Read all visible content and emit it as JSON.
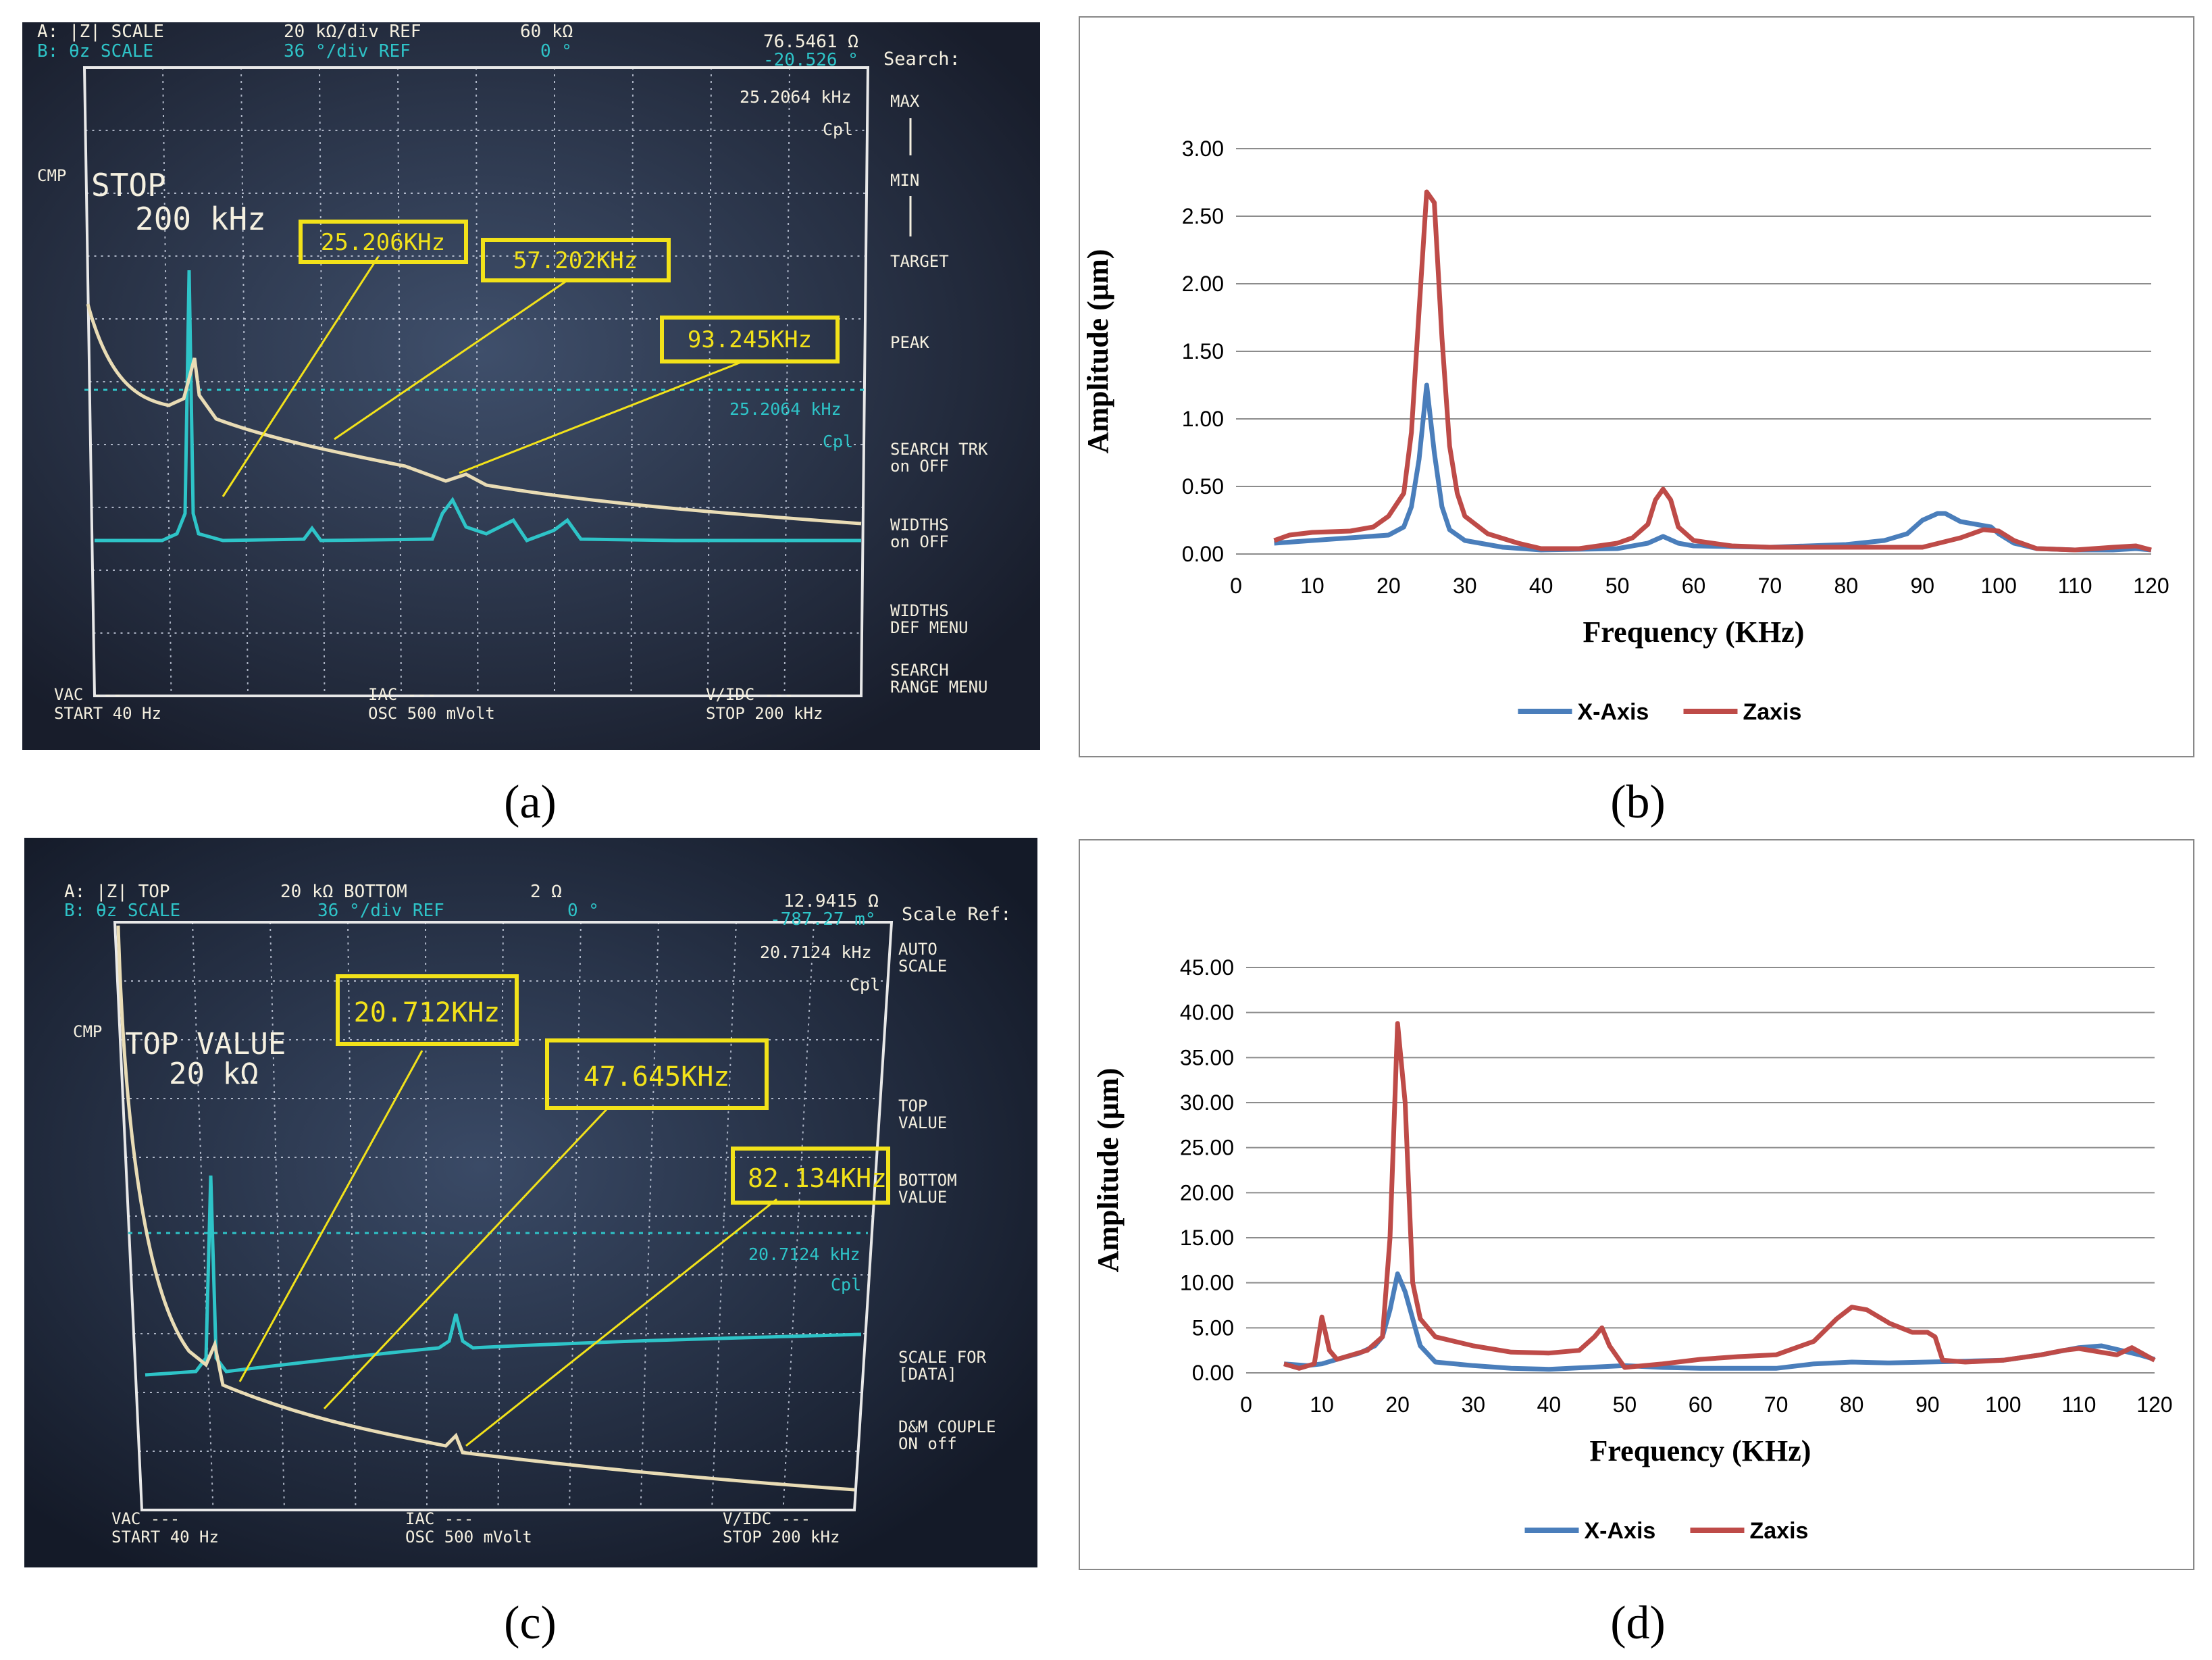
{
  "panels": {
    "a": {
      "caption": "(a)",
      "hdr": {
        "l1": "A: |Z|  SCALE",
        "l1b": "20 kΩ/div REF",
        "l1c": "60 kΩ",
        "l2": "B: θz  SCALE",
        "l2b": "36 °/div REF",
        "l2c": "0 °",
        "val1": "76.5461 Ω",
        "val2": "-20.526 °"
      },
      "cmp": "CMP",
      "big1": "STOP",
      "big2": "200 kHz",
      "marker_freq_top": "25.2064 kHz",
      "marker_cpl_top": "Cpl",
      "marker_freq_mid": "25.2064 kHz",
      "marker_cpl_mid": "Cpl",
      "softkey_title": "Search:",
      "softkeys": [
        "MAX",
        "MIN",
        "TARGET",
        "PEAK",
        "SEARCH TRK",
        "on OFF",
        "WIDTHS",
        "on OFF",
        "WIDTHS",
        "DEF MENU",
        "SEARCH",
        "RANGE MENU"
      ],
      "footer": {
        "l1": "VAC ---",
        "l2": "START 40 Hz",
        "m1": "IAC ---",
        "m2": "OSC 500 mVolt",
        "r1": "V/IDC ---",
        "r2": "STOP 200 kHz"
      },
      "callouts": [
        "25.206KHz",
        "57.202KHz",
        "93.245KHz"
      ]
    },
    "c": {
      "caption": "(c)",
      "hdr": {
        "l1": "A: |Z|  TOP",
        "l1b": "20 kΩ BOTTOM",
        "l1c": "2 Ω",
        "l2": "B: θz  SCALE",
        "l2b": "36 °/div REF",
        "l2c": "0 °",
        "val1": "12.9415 Ω",
        "val2": "-787.27 m°"
      },
      "cmp": "CMP",
      "big1": "TOP VALUE",
      "big2": "20 kΩ",
      "marker_freq_top": "20.7124 kHz",
      "marker_cpl_top": "Cpl",
      "marker_freq_mid": "20.7124 kHz",
      "marker_cpl_mid": "Cpl",
      "softkey_title": "Scale Ref:",
      "softkeys": [
        "AUTO",
        "SCALE",
        "TOP",
        "VALUE",
        "BOTTOM",
        "VALUE",
        "SCALE FOR",
        "[DATA]",
        "D&M COUPLE",
        "ON off"
      ],
      "footer": {
        "l1": "VAC ---",
        "l2": "START 40 Hz",
        "m1": "IAC ---",
        "m2": "OSC 500 mVolt",
        "r1": "V/IDC ---",
        "r2": "STOP 200 kHz"
      },
      "callouts": [
        "20.712KHz",
        "47.645KHz",
        "82.134KHz"
      ]
    },
    "b": {
      "caption": "(b)"
    },
    "d": {
      "caption": "(d)"
    }
  },
  "colors": {
    "x_axis": "#4a7ebb",
    "zaxis": "#be4b48",
    "scope_cyan": "#2ec4c8",
    "scope_trace": "#e9dcb5",
    "callout": "#f2e21a"
  },
  "chart_data": [
    {
      "id": "b",
      "type": "line",
      "title": "",
      "xlabel": "Frequency (KHz)",
      "ylabel": "Amplitude (µm)",
      "xlim": [
        0,
        120
      ],
      "ylim": [
        0,
        3
      ],
      "xticks": [
        0,
        10,
        20,
        30,
        40,
        50,
        60,
        70,
        80,
        90,
        100,
        110,
        120
      ],
      "yticks": [
        0,
        0.5,
        1,
        1.5,
        2,
        2.5,
        3
      ],
      "ytick_labels": [
        "0.00",
        "0.50",
        "1.00",
        "1.50",
        "2.00",
        "2.50",
        "3.00"
      ],
      "legend": "bottom",
      "series": [
        {
          "name": "X-Axis",
          "color": "#4a7ebb",
          "x": [
            5,
            10,
            15,
            20,
            22,
            23,
            24,
            25,
            26,
            27,
            28,
            30,
            35,
            40,
            50,
            54,
            56,
            58,
            60,
            70,
            80,
            85,
            88,
            90,
            92,
            93,
            95,
            97,
            99,
            100,
            102,
            105,
            110,
            115,
            118,
            120
          ],
          "y": [
            0.08,
            0.1,
            0.12,
            0.14,
            0.2,
            0.35,
            0.7,
            1.25,
            0.75,
            0.35,
            0.18,
            0.1,
            0.05,
            0.03,
            0.04,
            0.08,
            0.13,
            0.08,
            0.06,
            0.05,
            0.07,
            0.1,
            0.15,
            0.25,
            0.3,
            0.3,
            0.24,
            0.22,
            0.2,
            0.15,
            0.08,
            0.04,
            0.03,
            0.03,
            0.04,
            0.03
          ]
        },
        {
          "name": "Zaxis",
          "color": "#be4b48",
          "x": [
            5,
            7,
            10,
            15,
            18,
            20,
            22,
            23,
            24,
            25,
            26,
            27,
            28,
            29,
            30,
            33,
            37,
            40,
            45,
            50,
            52,
            54,
            55,
            56,
            57,
            58,
            60,
            65,
            70,
            80,
            90,
            95,
            98,
            100,
            102,
            105,
            110,
            115,
            118,
            120
          ],
          "y": [
            0.1,
            0.14,
            0.16,
            0.17,
            0.2,
            0.28,
            0.45,
            0.9,
            1.8,
            2.68,
            2.6,
            1.6,
            0.8,
            0.45,
            0.28,
            0.15,
            0.08,
            0.04,
            0.04,
            0.08,
            0.12,
            0.22,
            0.4,
            0.48,
            0.4,
            0.2,
            0.1,
            0.06,
            0.05,
            0.05,
            0.05,
            0.12,
            0.18,
            0.17,
            0.1,
            0.04,
            0.03,
            0.05,
            0.06,
            0.03
          ]
        }
      ]
    },
    {
      "id": "d",
      "type": "line",
      "title": "",
      "xlabel": "Frequency (KHz)",
      "ylabel": "Amplitude (µm)",
      "xlim": [
        0,
        120
      ],
      "ylim": [
        0,
        45
      ],
      "xticks": [
        0,
        10,
        20,
        30,
        40,
        50,
        60,
        70,
        80,
        90,
        100,
        110,
        120
      ],
      "yticks": [
        0,
        5,
        10,
        15,
        20,
        25,
        30,
        35,
        40,
        45
      ],
      "ytick_labels": [
        "0.00",
        "5.00",
        "10.00",
        "15.00",
        "20.00",
        "25.00",
        "30.00",
        "35.00",
        "40.00",
        "45.00"
      ],
      "legend": "bottom",
      "series": [
        {
          "name": "X-Axis",
          "color": "#4a7ebb",
          "x": [
            5,
            8,
            10,
            12,
            15,
            17,
            18,
            19,
            20,
            21,
            22,
            23,
            25,
            30,
            35,
            40,
            45,
            50,
            55,
            60,
            70,
            75,
            80,
            85,
            90,
            95,
            100,
            105,
            110,
            113,
            115,
            118,
            120
          ],
          "y": [
            1,
            0.8,
            1,
            1.5,
            2.2,
            3,
            4,
            7,
            11,
            9,
            6,
            3,
            1.2,
            0.8,
            0.5,
            0.4,
            0.6,
            0.8,
            0.6,
            0.5,
            0.5,
            1,
            1.2,
            1.1,
            1.2,
            1.3,
            1.4,
            2,
            2.8,
            3,
            2.6,
            2,
            1.5
          ]
        },
        {
          "name": "Zaxis",
          "color": "#be4b48",
          "x": [
            5,
            7,
            9,
            10,
            11,
            12,
            14,
            16,
            18,
            19,
            20,
            21,
            22,
            23,
            25,
            30,
            35,
            40,
            44,
            46,
            47,
            48,
            50,
            55,
            60,
            65,
            70,
            75,
            78,
            80,
            82,
            85,
            88,
            90,
            91,
            92,
            95,
            100,
            105,
            108,
            110,
            115,
            117,
            120
          ],
          "y": [
            1,
            0.5,
            1,
            6.2,
            2.5,
            1.5,
            2,
            2.5,
            4,
            15,
            38.8,
            30,
            10,
            6,
            4,
            3,
            2.3,
            2.2,
            2.5,
            4,
            5,
            3,
            0.6,
            1,
            1.5,
            1.8,
            2,
            3.5,
            6,
            7.3,
            7,
            5.5,
            4.5,
            4.5,
            4,
            1.4,
            1.2,
            1.4,
            2,
            2.5,
            2.7,
            2,
            2.8,
            1.4
          ]
        }
      ]
    }
  ]
}
